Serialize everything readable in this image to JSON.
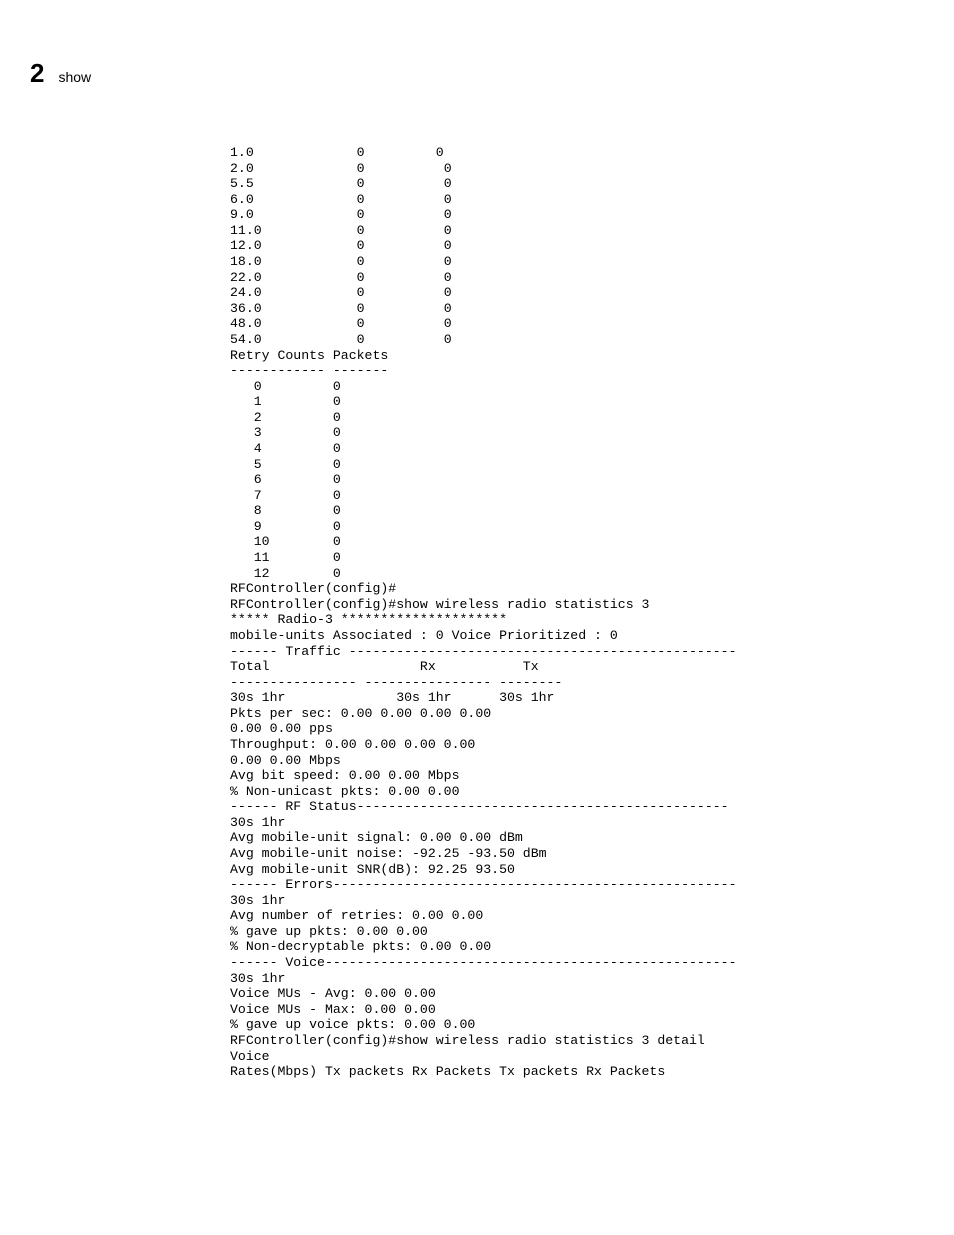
{
  "header": {
    "chapter_number": "2",
    "chapter_title": "show"
  },
  "rate_table": {
    "rows": [
      {
        "rate": "1.0",
        "tx": "0",
        "rx": "0"
      },
      {
        "rate": "2.0",
        "tx": "0",
        "rx": "0"
      },
      {
        "rate": "5.5",
        "tx": "0",
        "rx": "0"
      },
      {
        "rate": "6.0",
        "tx": "0",
        "rx": "0"
      },
      {
        "rate": "9.0",
        "tx": "0",
        "rx": "0"
      },
      {
        "rate": "11.0",
        "tx": "0",
        "rx": "0"
      },
      {
        "rate": "12.0",
        "tx": "0",
        "rx": "0"
      },
      {
        "rate": "18.0",
        "tx": "0",
        "rx": "0"
      },
      {
        "rate": "22.0",
        "tx": "0",
        "rx": "0"
      },
      {
        "rate": "24.0",
        "tx": "0",
        "rx": "0"
      },
      {
        "rate": "36.0",
        "tx": "0",
        "rx": "0"
      },
      {
        "rate": "48.0",
        "tx": "0",
        "rx": "0"
      },
      {
        "rate": "54.0",
        "tx": "0",
        "rx": "0"
      }
    ]
  },
  "retry_table": {
    "title": "Retry Counts Packets",
    "separator": "------------ -------",
    "rows": [
      {
        "count": "0",
        "packets": "0"
      },
      {
        "count": "1",
        "packets": "0"
      },
      {
        "count": "2",
        "packets": "0"
      },
      {
        "count": "3",
        "packets": "0"
      },
      {
        "count": "4",
        "packets": "0"
      },
      {
        "count": "5",
        "packets": "0"
      },
      {
        "count": "6",
        "packets": "0"
      },
      {
        "count": "7",
        "packets": "0"
      },
      {
        "count": "8",
        "packets": "0"
      },
      {
        "count": "9",
        "packets": "0"
      },
      {
        "count": "10",
        "packets": "0"
      },
      {
        "count": "11",
        "packets": "0"
      },
      {
        "count": "12",
        "packets": "0"
      }
    ]
  },
  "cli": {
    "prompt1": "RFController(config)#",
    "cmd_stats3": "RFController(config)#show wireless radio statistics 3",
    "radio_header": "***** Radio-3 *********************",
    "mu_line": "mobile-units Associated : 0 Voice Prioritized : 0",
    "traffic_header": "------ Traffic -------------------------------------------------",
    "traffic_cols": "Total                   Rx           Tx",
    "traffic_sep": "---------------- ---------------- --------",
    "traffic_30s": "30s 1hr              30s 1hr      30s 1hr",
    "pkts_line": "Pkts per sec: 0.00 0.00 0.00 0.00",
    "pkts_line2": "0.00 0.00 pps",
    "thr_line": "Throughput: 0.00 0.00 0.00 0.00",
    "thr_line2": "0.00 0.00 Mbps",
    "avg_bit": "Avg bit speed: 0.00 0.00 Mbps",
    "nonuni": "% Non-unicast pkts: 0.00 0.00",
    "rf_header": "------ RF Status-----------------------------------------------",
    "rf_30s": "30s 1hr",
    "rf_sig": "Avg mobile-unit signal: 0.00 0.00 dBm",
    "rf_noise": "Avg mobile-unit noise: -92.25 -93.50 dBm",
    "rf_snr": "Avg mobile-unit SNR(dB): 92.25 93.50",
    "err_header": "------ Errors---------------------------------------------------",
    "err_30s": "30s 1hr",
    "err_retries": "Avg number of retries: 0.00 0.00",
    "err_gaveup": "% gave up pkts: 0.00 0.00",
    "err_nondec": "% Non-decryptable pkts: 0.00 0.00",
    "voice_header": "------ Voice----------------------------------------------------",
    "voice_30s": "30s 1hr",
    "voice_avg": "Voice MUs - Avg: 0.00 0.00",
    "voice_max": "Voice MUs - Max: 0.00 0.00",
    "voice_gaveup": "% gave up voice pkts: 0.00 0.00",
    "cmd_stats3_detail": "RFController(config)#show wireless radio statistics 3 detail",
    "voice_label": "Voice",
    "rates_header": "Rates(Mbps) Tx packets Rx Packets Tx packets Rx Packets"
  }
}
